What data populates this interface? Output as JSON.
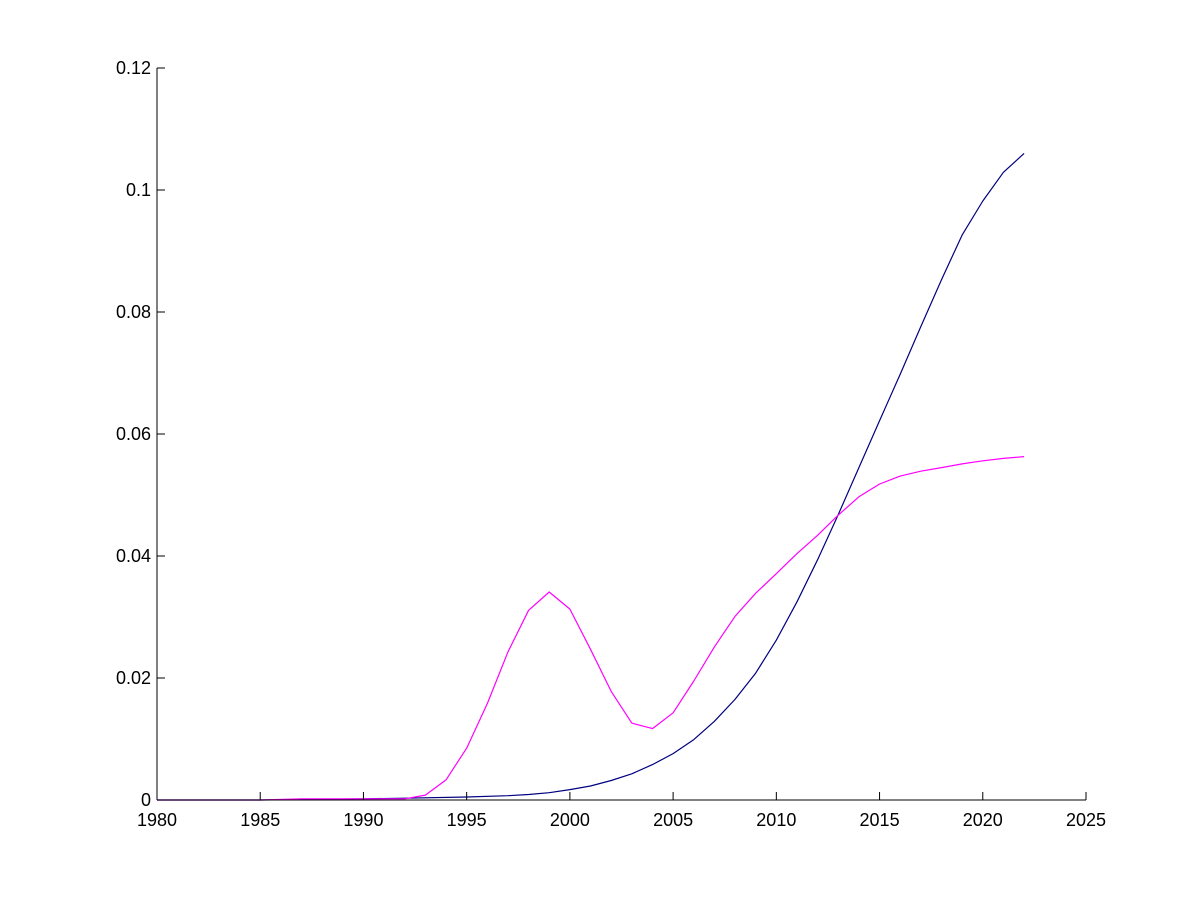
{
  "chart_data": {
    "type": "line",
    "title": "",
    "xlabel": "",
    "ylabel": "",
    "xlim": [
      1980,
      2025
    ],
    "ylim": [
      0,
      0.12
    ],
    "grid": false,
    "x_ticks": [
      1980,
      1985,
      1990,
      1995,
      2000,
      2005,
      2010,
      2015,
      2020,
      2025
    ],
    "x_tick_labels": [
      "1980",
      "1985",
      "1990",
      "1995",
      "2000",
      "2005",
      "2010",
      "2015",
      "2020",
      "2025"
    ],
    "y_ticks": [
      0,
      0.02,
      0.04,
      0.06,
      0.08,
      0.1,
      0.12
    ],
    "y_tick_labels": [
      "0",
      "0.02",
      "0.04",
      "0.06",
      "0.08",
      "0.1",
      "0.12"
    ],
    "series": [
      {
        "color": "#000080",
        "x": [
          1980,
          1985,
          1990,
          1992,
          1995,
          1997,
          1998,
          1999,
          2000,
          2001,
          2002,
          2003,
          2004,
          2005,
          2006,
          2007,
          2008,
          2009,
          2010,
          2011,
          2012,
          2013,
          2014,
          2015,
          2016,
          2017,
          2018,
          2019,
          2020,
          2021,
          2022
        ],
        "y": [
          0,
          0,
          0.0002,
          0.0003,
          0.0005,
          0.0007,
          0.0009,
          0.0012,
          0.0017,
          0.0023,
          0.0032,
          0.0043,
          0.0058,
          0.0076,
          0.0099,
          0.0129,
          0.0165,
          0.0208,
          0.0262,
          0.0325,
          0.0394,
          0.0468,
          0.0545,
          0.0622,
          0.0698,
          0.0776,
          0.0853,
          0.0926,
          0.0982,
          0.1029,
          0.106
        ]
      },
      {
        "color": "#ff00ff",
        "x": [
          1980,
          1985,
          1987,
          1990,
          1992,
          1993,
          1994,
          1995,
          1996,
          1997,
          1998,
          1999,
          2000,
          2001,
          2002,
          2003,
          2004,
          2005,
          2006,
          2007,
          2008,
          2009,
          2010,
          2011,
          2012,
          2013,
          2014,
          2015,
          2016,
          2017,
          2018,
          2019,
          2020,
          2021,
          2022
        ],
        "y": [
          0,
          0,
          0.0002,
          0.0002,
          0.0002,
          0.0008,
          0.0033,
          0.0085,
          0.0158,
          0.0243,
          0.0311,
          0.0341,
          0.0313,
          0.0247,
          0.0178,
          0.0126,
          0.0117,
          0.0143,
          0.0195,
          0.0251,
          0.0301,
          0.0339,
          0.0371,
          0.0404,
          0.0434,
          0.0467,
          0.0497,
          0.0518,
          0.0531,
          0.0539,
          0.0545,
          0.0551,
          0.0556,
          0.056,
          0.0563
        ]
      }
    ]
  }
}
